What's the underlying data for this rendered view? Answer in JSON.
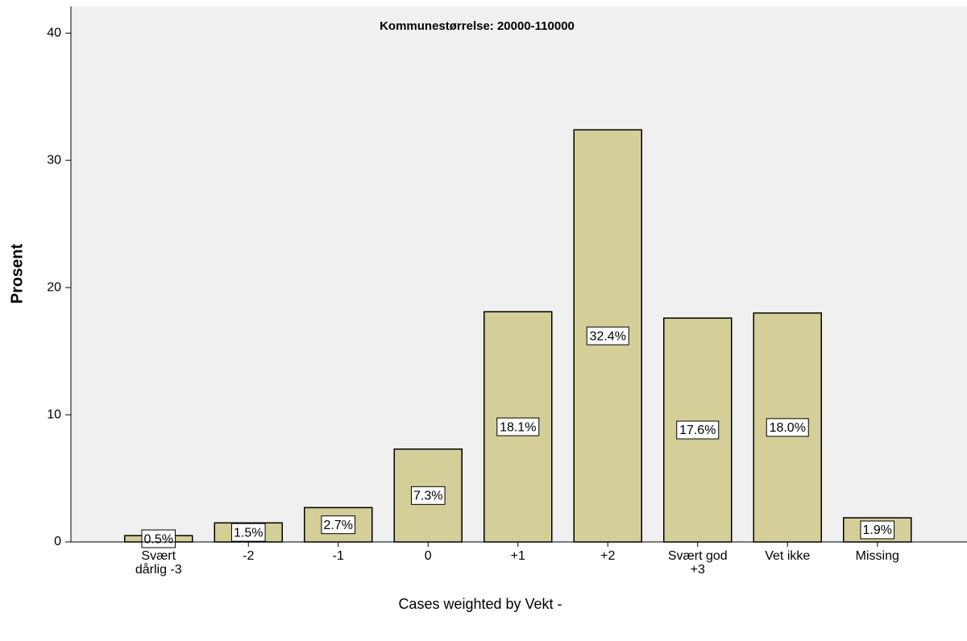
{
  "chart_data": {
    "type": "bar",
    "title": "Kommunestørrelse: 20000-110000",
    "y_label": "Prosent",
    "footnote": "Cases weighted by Vekt -",
    "categories": [
      "Svært\ndårlig -3",
      "-2",
      "-1",
      "0",
      "+1",
      "+2",
      "Svært god\n+3",
      "Vet ikke",
      "Missing"
    ],
    "values": [
      0.5,
      1.5,
      2.7,
      7.3,
      18.1,
      32.4,
      17.6,
      18.0,
      1.9
    ],
    "value_labels": [
      "0.5%",
      "1.5%",
      "2.7%",
      "7.3%",
      "18.1%",
      "32.4%",
      "17.6%",
      "18.0%",
      "1.9%"
    ],
    "color": "#d4ce98",
    "ylim": [
      0,
      42.1
    ],
    "yticks": [
      0,
      10,
      20,
      30,
      40
    ],
    "grid": false
  }
}
